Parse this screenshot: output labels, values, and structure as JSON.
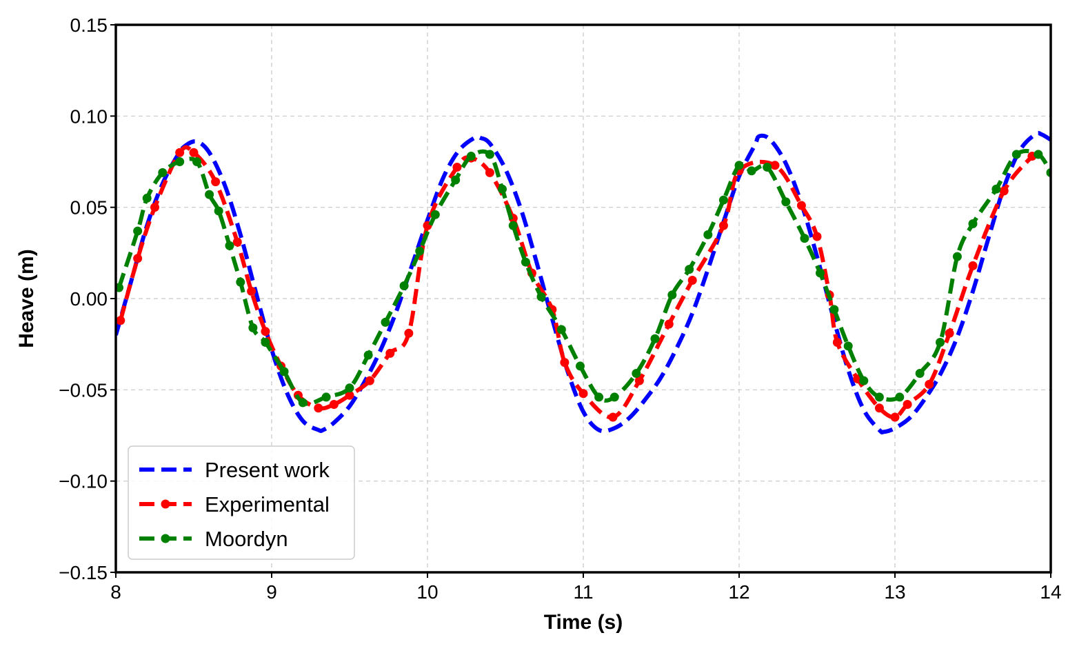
{
  "chart_data": {
    "type": "line",
    "title": "",
    "xlabel": "Time (s)",
    "ylabel": "Heave (m)",
    "xlim": [
      8,
      14
    ],
    "ylim": [
      -0.15,
      0.15
    ],
    "grid": true,
    "legend_position": "lower-left",
    "x_ticks": [
      8,
      9,
      10,
      11,
      12,
      13,
      14
    ],
    "x_tick_labels": [
      "8",
      "9",
      "10",
      "11",
      "12",
      "13",
      "14"
    ],
    "y_ticks": [
      -0.15,
      -0.1,
      -0.05,
      0.0,
      0.05,
      0.1,
      0.15
    ],
    "y_tick_labels": [
      "−0.15",
      "−0.10",
      "−0.05",
      "0.00",
      "0.05",
      "0.10",
      "0.15"
    ],
    "series": [
      {
        "name": "Present work",
        "color": "#0000ff",
        "marker": "none",
        "style": "dashed",
        "x": [
          8.0,
          8.1,
          8.2,
          8.3,
          8.4,
          8.45,
          8.52,
          8.6,
          8.7,
          8.8,
          8.9,
          9.0,
          9.1,
          9.2,
          9.3,
          9.33,
          9.4,
          9.5,
          9.6,
          9.7,
          9.8,
          9.9,
          10.0,
          10.1,
          10.2,
          10.3,
          10.34,
          10.4,
          10.5,
          10.6,
          10.7,
          10.8,
          10.9,
          11.0,
          11.1,
          11.2,
          11.3,
          11.4,
          11.5,
          11.6,
          11.7,
          11.8,
          11.9,
          12.0,
          12.1,
          12.13,
          12.2,
          12.3,
          12.4,
          12.5,
          12.6,
          12.7,
          12.8,
          12.9,
          12.93,
          13.0,
          13.1,
          13.2,
          13.3,
          13.4,
          13.5,
          13.6,
          13.7,
          13.8,
          13.9,
          13.94,
          14.0
        ],
        "y": [
          -0.02,
          0.01,
          0.04,
          0.063,
          0.079,
          0.084,
          0.086,
          0.08,
          0.062,
          0.035,
          0.003,
          -0.028,
          -0.052,
          -0.067,
          -0.072,
          -0.072,
          -0.068,
          -0.059,
          -0.045,
          -0.028,
          -0.007,
          0.018,
          0.043,
          0.066,
          0.081,
          0.088,
          0.088,
          0.085,
          0.071,
          0.049,
          0.02,
          -0.011,
          -0.04,
          -0.062,
          -0.072,
          -0.071,
          -0.065,
          -0.055,
          -0.043,
          -0.027,
          -0.008,
          0.016,
          0.042,
          0.067,
          0.084,
          0.089,
          0.087,
          0.074,
          0.052,
          0.023,
          -0.009,
          -0.039,
          -0.061,
          -0.072,
          -0.073,
          -0.071,
          -0.065,
          -0.054,
          -0.04,
          -0.021,
          0.004,
          0.033,
          0.061,
          0.081,
          0.09,
          0.09,
          0.087
        ]
      },
      {
        "name": "Experimental",
        "color": "#ff0000",
        "marker": "circle",
        "style": "dashed",
        "x": [
          8.03,
          8.14,
          8.25,
          8.41,
          8.5,
          8.64,
          8.78,
          8.87,
          8.96,
          9.06,
          9.17,
          9.3,
          9.4,
          9.5,
          9.63,
          9.76,
          9.88,
          10.0,
          10.19,
          10.28,
          10.4,
          10.55,
          10.67,
          10.8,
          10.88,
          11.0,
          11.19,
          11.36,
          11.55,
          11.7,
          11.9,
          12.0,
          12.23,
          12.4,
          12.5,
          12.58,
          12.63,
          12.76,
          12.9,
          13.0,
          13.08,
          13.22,
          13.35,
          13.5,
          13.7,
          13.88
        ],
        "y": [
          -0.012,
          0.022,
          0.05,
          0.08,
          0.08,
          0.064,
          0.031,
          0.004,
          -0.018,
          -0.037,
          -0.053,
          -0.06,
          -0.058,
          -0.053,
          -0.045,
          -0.03,
          -0.019,
          0.04,
          0.072,
          0.077,
          0.069,
          0.044,
          0.014,
          -0.006,
          -0.035,
          -0.052,
          -0.065,
          -0.045,
          -0.014,
          0.01,
          0.04,
          0.07,
          0.073,
          0.051,
          0.034,
          0.002,
          -0.024,
          -0.044,
          -0.06,
          -0.065,
          -0.058,
          -0.047,
          -0.019,
          0.018,
          0.059,
          0.078
        ]
      },
      {
        "name": "Moordyn",
        "color": "#008000",
        "marker": "circle",
        "style": "dashed",
        "x": [
          8.02,
          8.14,
          8.2,
          8.3,
          8.41,
          8.52,
          8.6,
          8.66,
          8.73,
          8.8,
          8.88,
          8.96,
          9.08,
          9.2,
          9.35,
          9.5,
          9.62,
          9.73,
          9.85,
          9.95,
          10.05,
          10.18,
          10.28,
          10.4,
          10.48,
          10.55,
          10.63,
          10.73,
          10.86,
          10.98,
          11.1,
          11.2,
          11.34,
          11.46,
          11.57,
          11.68,
          11.8,
          11.9,
          12.0,
          12.08,
          12.18,
          12.3,
          12.42,
          12.52,
          12.61,
          12.7,
          12.8,
          12.9,
          13.03,
          13.16,
          13.29,
          13.4,
          13.5,
          13.65,
          13.78,
          13.92,
          14.0
        ],
        "y": [
          0.006,
          0.037,
          0.055,
          0.069,
          0.075,
          0.075,
          0.057,
          0.048,
          0.029,
          0.009,
          -0.016,
          -0.024,
          -0.04,
          -0.057,
          -0.054,
          -0.049,
          -0.031,
          -0.013,
          0.007,
          0.026,
          0.046,
          0.065,
          0.078,
          0.079,
          0.06,
          0.04,
          0.02,
          0.001,
          -0.017,
          -0.037,
          -0.054,
          -0.054,
          -0.041,
          -0.022,
          0.002,
          0.016,
          0.035,
          0.054,
          0.073,
          0.07,
          0.072,
          0.053,
          0.033,
          0.014,
          -0.006,
          -0.026,
          -0.045,
          -0.054,
          -0.054,
          -0.041,
          -0.024,
          0.023,
          0.041,
          0.06,
          0.079,
          0.079,
          0.069
        ]
      }
    ]
  }
}
